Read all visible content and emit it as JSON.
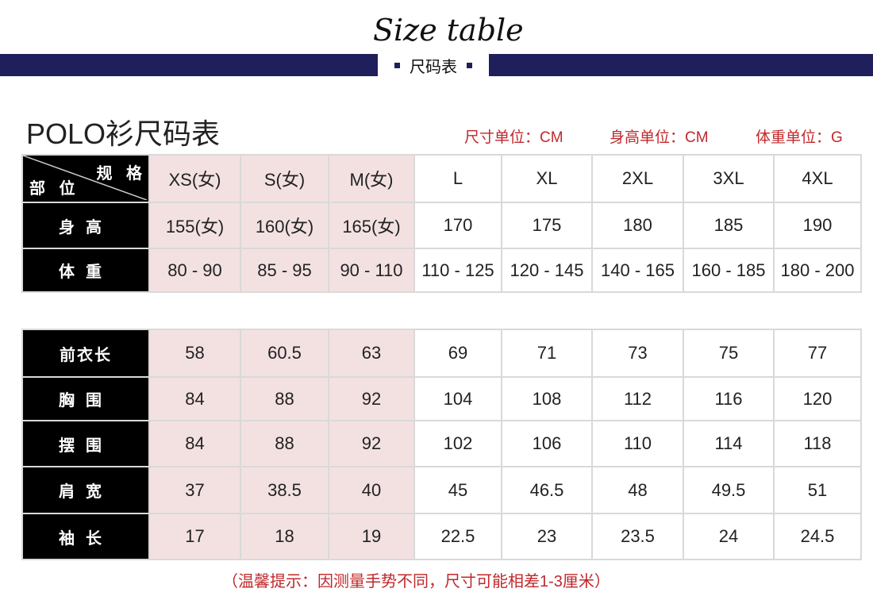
{
  "header": {
    "title": "Size table",
    "subtitle": "尺码表"
  },
  "product_title": "POLO衫尺码表",
  "units": [
    "尺寸单位：CM",
    "身高单位：CM",
    "体重单位：G"
  ],
  "corner": {
    "top": "规 格",
    "bottom": "部 位"
  },
  "sizes": [
    "XS(女)",
    "S(女)",
    "M(女)",
    "L",
    "XL",
    "2XL",
    "3XL",
    "4XL"
  ],
  "table1": [
    {
      "label": "身高",
      "values": [
        "155(女)",
        "160(女)",
        "165(女)",
        "170",
        "175",
        "180",
        "185",
        "190"
      ]
    },
    {
      "label": "体重",
      "values": [
        "80 - 90",
        "85 - 95",
        "90 - 110",
        "110 - 125",
        "120 - 145",
        "140 - 165",
        "160 - 185",
        "180 - 200"
      ]
    }
  ],
  "table2": [
    {
      "label": "前衣长",
      "values": [
        "58",
        "60.5",
        "63",
        "69",
        "71",
        "73",
        "75",
        "77"
      ]
    },
    {
      "label": "胸围",
      "values": [
        "84",
        "88",
        "92",
        "104",
        "108",
        "112",
        "116",
        "120"
      ]
    },
    {
      "label": "摆围",
      "values": [
        "84",
        "88",
        "92",
        "102",
        "106",
        "110",
        "114",
        "118"
      ]
    },
    {
      "label": "肩宽",
      "values": [
        "37",
        "38.5",
        "40",
        "45",
        "46.5",
        "48",
        "49.5",
        "51"
      ]
    },
    {
      "label": "袖长",
      "values": [
        "17",
        "18",
        "19",
        "22.5",
        "23",
        "23.5",
        "24",
        "24.5"
      ]
    }
  ],
  "note": "（温馨提示：因测量手势不同，尺寸可能相差1-3厘米）",
  "colors": {
    "navy": "#1f1f5c",
    "pink": "#f3e1e2",
    "red": "#c0282c"
  }
}
